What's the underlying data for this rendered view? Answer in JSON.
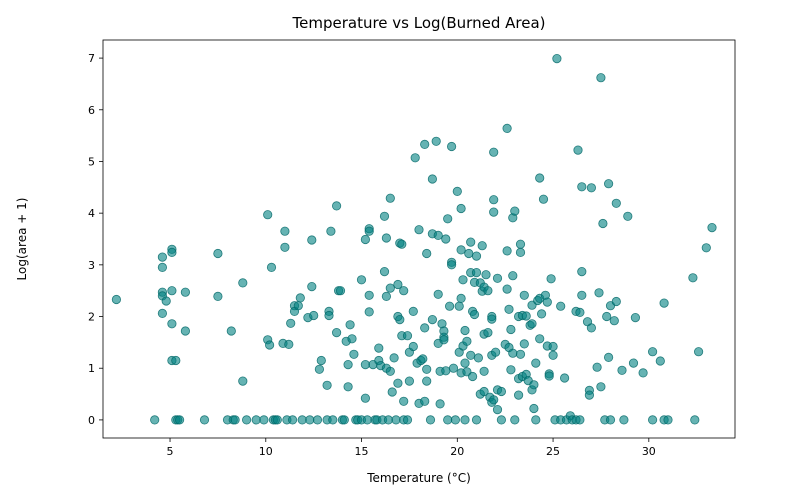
{
  "chart_data": {
    "type": "scatter",
    "title": "Temperature vs Log(Burned Area)",
    "xlabel": "Temperature (°C)",
    "ylabel": "Log(area + 1)",
    "xlim": [
      1.5,
      34.5
    ],
    "ylim": [
      -0.35,
      7.35
    ],
    "xticks": [
      5,
      10,
      15,
      20,
      25,
      30
    ],
    "yticks": [
      0,
      1,
      2,
      3,
      4,
      5,
      6,
      7
    ],
    "xtick_labels": [
      "5",
      "10",
      "15",
      "20",
      "25",
      "30"
    ],
    "ytick_labels": [
      "0",
      "1",
      "2",
      "3",
      "4",
      "5",
      "6",
      "7"
    ],
    "grid": false,
    "color": "#008080",
    "points": [
      [
        2.2,
        2.33
      ],
      [
        4.2,
        0
      ],
      [
        4.6,
        3.15
      ],
      [
        4.6,
        2.95
      ],
      [
        4.6,
        2.47
      ],
      [
        4.6,
        2.4
      ],
      [
        4.6,
        2.06
      ],
      [
        4.8,
        2.3
      ],
      [
        5.1,
        3.3
      ],
      [
        5.1,
        3.24
      ],
      [
        5.1,
        2.5
      ],
      [
        5.1,
        1.86
      ],
      [
        5.1,
        1.15
      ],
      [
        5.3,
        1.15
      ],
      [
        5.3,
        0
      ],
      [
        5.4,
        0
      ],
      [
        5.5,
        0
      ],
      [
        5.8,
        2.47
      ],
      [
        5.8,
        1.72
      ],
      [
        6.8,
        0
      ],
      [
        7.5,
        3.22
      ],
      [
        7.5,
        2.39
      ],
      [
        8.0,
        0
      ],
      [
        8.2,
        1.72
      ],
      [
        8.3,
        0
      ],
      [
        8.4,
        0
      ],
      [
        8.8,
        2.65
      ],
      [
        8.8,
        0.75
      ],
      [
        9.0,
        0
      ],
      [
        9.5,
        0
      ],
      [
        9.9,
        0
      ],
      [
        10.1,
        3.97
      ],
      [
        10.1,
        1.55
      ],
      [
        10.2,
        1.45
      ],
      [
        10.3,
        2.95
      ],
      [
        10.4,
        0
      ],
      [
        10.5,
        0
      ],
      [
        10.6,
        0
      ],
      [
        10.9,
        1.48
      ],
      [
        11.0,
        3.65
      ],
      [
        11.0,
        3.34
      ],
      [
        11.1,
        0
      ],
      [
        11.2,
        1.46
      ],
      [
        11.3,
        1.87
      ],
      [
        11.4,
        0
      ],
      [
        11.5,
        2.21
      ],
      [
        11.5,
        2.1
      ],
      [
        11.7,
        2.21
      ],
      [
        11.8,
        2.36
      ],
      [
        11.9,
        0
      ],
      [
        12.2,
        1.98
      ],
      [
        12.3,
        0
      ],
      [
        12.4,
        3.48
      ],
      [
        12.4,
        2.58
      ],
      [
        12.5,
        2.02
      ],
      [
        12.7,
        0
      ],
      [
        12.8,
        0.98
      ],
      [
        12.9,
        1.15
      ],
      [
        13.2,
        0.67
      ],
      [
        13.2,
        0
      ],
      [
        13.3,
        2.1
      ],
      [
        13.3,
        2.02
      ],
      [
        13.4,
        3.65
      ],
      [
        13.5,
        0
      ],
      [
        13.7,
        4.14
      ],
      [
        13.7,
        1.69
      ],
      [
        13.8,
        2.5
      ],
      [
        13.9,
        2.5
      ],
      [
        14.0,
        0
      ],
      [
        14.1,
        0
      ],
      [
        14.2,
        1.52
      ],
      [
        14.3,
        1.07
      ],
      [
        14.3,
        0.64
      ],
      [
        14.4,
        1.84
      ],
      [
        14.5,
        1.57
      ],
      [
        14.6,
        1.27
      ],
      [
        14.7,
        0
      ],
      [
        14.8,
        0
      ],
      [
        15.0,
        2.71
      ],
      [
        15.0,
        0
      ],
      [
        15.2,
        3.49
      ],
      [
        15.2,
        1.07
      ],
      [
        15.2,
        0.42
      ],
      [
        15.3,
        0
      ],
      [
        15.4,
        3.7
      ],
      [
        15.4,
        3.65
      ],
      [
        15.4,
        2.41
      ],
      [
        15.4,
        2.09
      ],
      [
        15.6,
        1.07
      ],
      [
        15.7,
        0
      ],
      [
        15.8,
        0
      ],
      [
        15.9,
        1.39
      ],
      [
        15.9,
        1.15
      ],
      [
        16.0,
        1.05
      ],
      [
        16.1,
        0
      ],
      [
        16.2,
        3.94
      ],
      [
        16.2,
        2.87
      ],
      [
        16.3,
        3.52
      ],
      [
        16.3,
        2.39
      ],
      [
        16.3,
        1.0
      ],
      [
        16.4,
        0
      ],
      [
        16.5,
        4.29
      ],
      [
        16.5,
        2.55
      ],
      [
        16.5,
        0.94
      ],
      [
        16.6,
        0.54
      ],
      [
        16.7,
        1.2
      ],
      [
        16.8,
        0
      ],
      [
        16.9,
        2.62
      ],
      [
        16.9,
        2.0
      ],
      [
        16.9,
        0.71
      ],
      [
        17.0,
        3.42
      ],
      [
        17.0,
        1.94
      ],
      [
        17.1,
        3.4
      ],
      [
        17.1,
        1.63
      ],
      [
        17.2,
        2.5
      ],
      [
        17.2,
        0.36
      ],
      [
        17.2,
        0
      ],
      [
        17.4,
        1.63
      ],
      [
        17.4,
        0
      ],
      [
        17.5,
        1.31
      ],
      [
        17.5,
        0.75
      ],
      [
        17.7,
        1.42
      ],
      [
        17.7,
        2.1
      ],
      [
        17.8,
        5.07
      ],
      [
        17.9,
        1.1
      ],
      [
        18.0,
        3.68
      ],
      [
        18.0,
        0.32
      ],
      [
        18.1,
        1.15
      ],
      [
        18.2,
        1.18
      ],
      [
        18.3,
        5.33
      ],
      [
        18.3,
        1.78
      ],
      [
        18.3,
        0.36
      ],
      [
        18.4,
        3.22
      ],
      [
        18.4,
        0.75
      ],
      [
        18.4,
        0.98
      ],
      [
        18.6,
        0
      ],
      [
        18.7,
        4.66
      ],
      [
        18.7,
        3.6
      ],
      [
        18.7,
        1.94
      ],
      [
        18.9,
        5.39
      ],
      [
        19.0,
        3.57
      ],
      [
        19.0,
        2.43
      ],
      [
        19.0,
        1.48
      ],
      [
        19.1,
        0.94
      ],
      [
        19.1,
        0.31
      ],
      [
        19.2,
        1.86
      ],
      [
        19.3,
        1.72
      ],
      [
        19.3,
        1.6
      ],
      [
        19.3,
        1.55
      ],
      [
        19.4,
        3.5
      ],
      [
        19.4,
        0.95
      ],
      [
        19.5,
        3.89
      ],
      [
        19.5,
        0
      ],
      [
        19.6,
        2.2
      ],
      [
        19.7,
        5.29
      ],
      [
        19.7,
        3.05
      ],
      [
        19.7,
        3.0
      ],
      [
        19.8,
        1.0
      ],
      [
        19.9,
        0
      ],
      [
        20.0,
        4.42
      ],
      [
        20.1,
        2.2
      ],
      [
        20.1,
        1.31
      ],
      [
        20.2,
        4.09
      ],
      [
        20.2,
        3.29
      ],
      [
        20.2,
        2.35
      ],
      [
        20.2,
        0.91
      ],
      [
        20.3,
        2.71
      ],
      [
        20.3,
        1.43
      ],
      [
        20.4,
        1.73
      ],
      [
        20.4,
        1.1
      ],
      [
        20.4,
        0
      ],
      [
        20.5,
        1.52
      ],
      [
        20.5,
        0.93
      ],
      [
        20.6,
        3.22
      ],
      [
        20.7,
        2.85
      ],
      [
        20.7,
        3.44
      ],
      [
        20.7,
        1.25
      ],
      [
        20.8,
        2.1
      ],
      [
        20.8,
        0.84
      ],
      [
        20.9,
        2.66
      ],
      [
        20.9,
        2.04
      ],
      [
        21.0,
        2.85
      ],
      [
        21.0,
        3.17
      ],
      [
        21.0,
        0
      ],
      [
        21.1,
        1.2
      ],
      [
        21.2,
        2.65
      ],
      [
        21.2,
        0.5
      ],
      [
        21.3,
        3.37
      ],
      [
        21.3,
        2.49
      ],
      [
        21.4,
        2.57
      ],
      [
        21.4,
        1.66
      ],
      [
        21.4,
        0.94
      ],
      [
        21.4,
        0.55
      ],
      [
        21.5,
        2.81
      ],
      [
        21.6,
        2.5
      ],
      [
        21.6,
        1.69
      ],
      [
        21.7,
        0.44
      ],
      [
        21.8,
        0.34
      ],
      [
        21.8,
        2.0
      ],
      [
        21.8,
        1.95
      ],
      [
        21.8,
        1.25
      ],
      [
        21.9,
        5.18
      ],
      [
        21.9,
        4.26
      ],
      [
        21.9,
        4.02
      ],
      [
        21.9,
        0.39
      ],
      [
        22.0,
        1.31
      ],
      [
        22.1,
        2.74
      ],
      [
        22.1,
        0.2
      ],
      [
        22.1,
        0.58
      ],
      [
        22.3,
        0.55
      ],
      [
        22.3,
        0
      ],
      [
        22.5,
        1.46
      ],
      [
        22.6,
        5.64
      ],
      [
        22.6,
        3.27
      ],
      [
        22.6,
        2.53
      ],
      [
        22.7,
        1.4
      ],
      [
        22.7,
        2.14
      ],
      [
        22.8,
        1.75
      ],
      [
        22.8,
        0.97
      ],
      [
        22.9,
        3.91
      ],
      [
        22.9,
        2.79
      ],
      [
        22.9,
        1.29
      ],
      [
        23.0,
        4.04
      ],
      [
        23.0,
        0
      ],
      [
        23.2,
        2.0
      ],
      [
        23.2,
        0.8
      ],
      [
        23.2,
        0.48
      ],
      [
        23.3,
        3.4
      ],
      [
        23.3,
        3.24
      ],
      [
        23.3,
        1.27
      ],
      [
        23.4,
        2.02
      ],
      [
        23.4,
        0.84
      ],
      [
        23.5,
        2.41
      ],
      [
        23.5,
        1.47
      ],
      [
        23.6,
        2.01
      ],
      [
        23.6,
        0.88
      ],
      [
        23.7,
        0.76
      ],
      [
        23.8,
        1.83
      ],
      [
        23.9,
        2.22
      ],
      [
        23.9,
        1.86
      ],
      [
        23.9,
        0.58
      ],
      [
        24.0,
        0.22
      ],
      [
        24.0,
        0.68
      ],
      [
        24.1,
        1.1
      ],
      [
        24.1,
        0
      ],
      [
        24.2,
        2.31
      ],
      [
        24.3,
        4.68
      ],
      [
        24.3,
        2.35
      ],
      [
        24.3,
        1.57
      ],
      [
        24.4,
        2.05
      ],
      [
        24.5,
        4.27
      ],
      [
        24.6,
        2.41
      ],
      [
        24.7,
        2.28
      ],
      [
        24.7,
        1.43
      ],
      [
        24.8,
        0.89
      ],
      [
        24.8,
        0.85
      ],
      [
        24.9,
        2.73
      ],
      [
        25.0,
        1.42
      ],
      [
        25.0,
        1.25
      ],
      [
        25.1,
        0
      ],
      [
        25.2,
        6.99
      ],
      [
        25.4,
        2.2
      ],
      [
        25.4,
        0
      ],
      [
        25.6,
        0.81
      ],
      [
        25.7,
        0
      ],
      [
        25.9,
        0.08
      ],
      [
        26.0,
        0
      ],
      [
        26.2,
        2.1
      ],
      [
        26.2,
        0
      ],
      [
        26.3,
        5.22
      ],
      [
        26.4,
        2.08
      ],
      [
        26.4,
        0
      ],
      [
        26.5,
        4.51
      ],
      [
        26.5,
        2.87
      ],
      [
        26.5,
        2.41
      ],
      [
        26.8,
        1.9
      ],
      [
        26.9,
        0.57
      ],
      [
        26.9,
        0.48
      ],
      [
        27.0,
        4.49
      ],
      [
        27.0,
        1.78
      ],
      [
        27.3,
        1.02
      ],
      [
        27.4,
        2.46
      ],
      [
        27.5,
        0.64
      ],
      [
        27.5,
        6.62
      ],
      [
        27.6,
        3.8
      ],
      [
        27.7,
        0
      ],
      [
        27.8,
        2.0
      ],
      [
        27.9,
        4.57
      ],
      [
        27.9,
        1.21
      ],
      [
        28.0,
        2.21
      ],
      [
        28.0,
        0
      ],
      [
        28.2,
        1.92
      ],
      [
        28.3,
        4.19
      ],
      [
        28.3,
        2.29
      ],
      [
        28.6,
        0.96
      ],
      [
        28.7,
        0
      ],
      [
        28.9,
        3.94
      ],
      [
        29.2,
        1.1
      ],
      [
        29.3,
        1.98
      ],
      [
        29.7,
        0.91
      ],
      [
        30.2,
        1.32
      ],
      [
        30.2,
        0
      ],
      [
        30.6,
        1.14
      ],
      [
        30.8,
        2.26
      ],
      [
        30.8,
        0
      ],
      [
        31.0,
        0
      ],
      [
        32.3,
        2.75
      ],
      [
        32.4,
        0
      ],
      [
        32.6,
        1.32
      ],
      [
        33.0,
        3.33
      ],
      [
        33.3,
        3.72
      ]
    ],
    "notes": "Many additional points overlap at y = 0 across roughly 9–32 °C."
  }
}
